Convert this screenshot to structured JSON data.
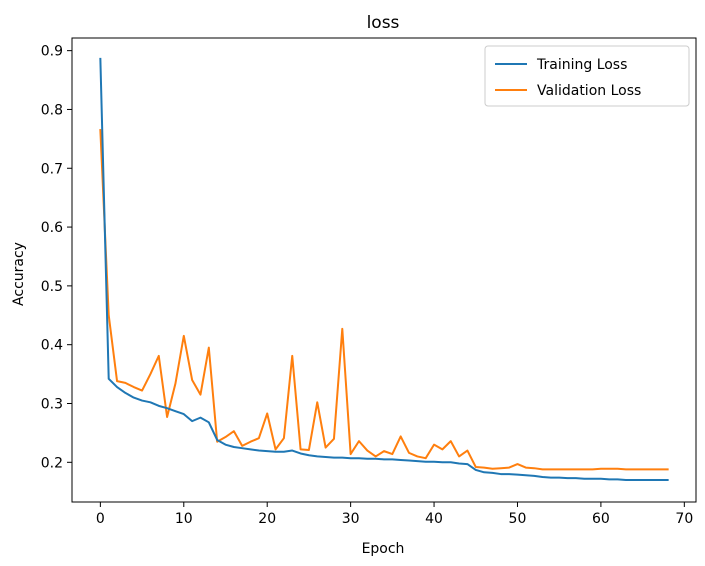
{
  "chart_data": {
    "type": "line",
    "title": "loss",
    "xlabel": "Epoch",
    "ylabel": "Accuracy",
    "xlim": [
      -3.4,
      71.4
    ],
    "ylim": [
      0.1325,
      0.9215
    ],
    "xticks": [
      0,
      10,
      20,
      30,
      40,
      50,
      60,
      70
    ],
    "yticks": [
      0.2,
      0.3,
      0.4,
      0.5,
      0.6,
      0.7,
      0.8,
      0.9
    ],
    "xtick_labels": [
      "0",
      "10",
      "20",
      "30",
      "40",
      "50",
      "60",
      "70"
    ],
    "ytick_labels": [
      "0.2",
      "0.3",
      "0.4",
      "0.5",
      "0.6",
      "0.7",
      "0.8",
      "0.9"
    ],
    "grid": false,
    "legend_position": "top-right",
    "series": [
      {
        "name": "Training Loss",
        "color": "#1f77b4",
        "values": [
          0.886,
          0.342,
          0.328,
          0.318,
          0.31,
          0.305,
          0.302,
          0.296,
          0.292,
          0.287,
          0.282,
          0.27,
          0.276,
          0.268,
          0.238,
          0.23,
          0.226,
          0.224,
          0.222,
          0.22,
          0.219,
          0.218,
          0.218,
          0.22,
          0.215,
          0.212,
          0.21,
          0.209,
          0.208,
          0.208,
          0.207,
          0.207,
          0.206,
          0.206,
          0.205,
          0.205,
          0.204,
          0.203,
          0.202,
          0.201,
          0.201,
          0.2,
          0.2,
          0.198,
          0.197,
          0.187,
          0.183,
          0.182,
          0.18,
          0.18,
          0.179,
          0.178,
          0.177,
          0.175,
          0.174,
          0.174,
          0.173,
          0.173,
          0.172,
          0.172,
          0.172,
          0.171,
          0.171,
          0.17,
          0.17,
          0.17,
          0.17,
          0.17,
          0.17
        ]
      },
      {
        "name": "Validation Loss",
        "color": "#ff7f0e",
        "values": [
          0.765,
          0.45,
          0.338,
          0.335,
          0.328,
          0.322,
          0.35,
          0.381,
          0.277,
          0.334,
          0.415,
          0.34,
          0.315,
          0.395,
          0.235,
          0.243,
          0.253,
          0.228,
          0.235,
          0.241,
          0.283,
          0.222,
          0.241,
          0.381,
          0.222,
          0.221,
          0.302,
          0.225,
          0.24,
          0.427,
          0.214,
          0.236,
          0.22,
          0.21,
          0.219,
          0.214,
          0.244,
          0.216,
          0.21,
          0.207,
          0.23,
          0.222,
          0.236,
          0.21,
          0.22,
          0.192,
          0.191,
          0.189,
          0.19,
          0.191,
          0.197,
          0.191,
          0.19,
          0.188,
          0.188,
          0.188,
          0.188,
          0.188,
          0.188,
          0.188,
          0.189,
          0.189,
          0.189,
          0.188,
          0.188,
          0.188,
          0.188,
          0.188,
          0.188
        ]
      }
    ]
  }
}
